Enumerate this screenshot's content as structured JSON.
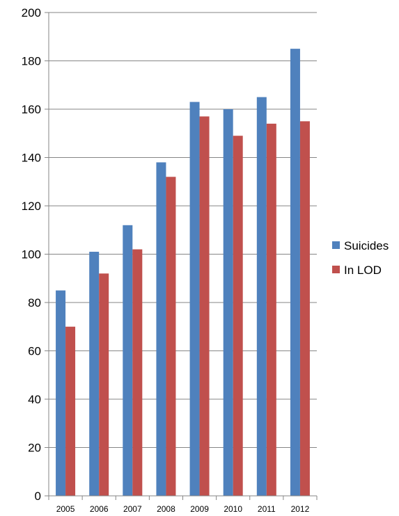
{
  "chart_data": {
    "type": "bar",
    "categories": [
      "2005",
      "2006",
      "2007",
      "2008",
      "2009",
      "2010",
      "2011",
      "2012"
    ],
    "series": [
      {
        "name": "Suicides",
        "color": "#4F81BD",
        "values": [
          85,
          101,
          112,
          138,
          163,
          160,
          165,
          185
        ]
      },
      {
        "name": "In LOD",
        "color": "#C0504D",
        "values": [
          70,
          92,
          102,
          132,
          157,
          149,
          154,
          155
        ]
      }
    ],
    "ylim": [
      0,
      200
    ],
    "yticks": [
      "0",
      "20",
      "40",
      "60",
      "80",
      "100",
      "120",
      "140",
      "160",
      "180",
      "200"
    ],
    "grid": true,
    "legend": "right",
    "title": "",
    "xlabel": "",
    "ylabel": ""
  }
}
